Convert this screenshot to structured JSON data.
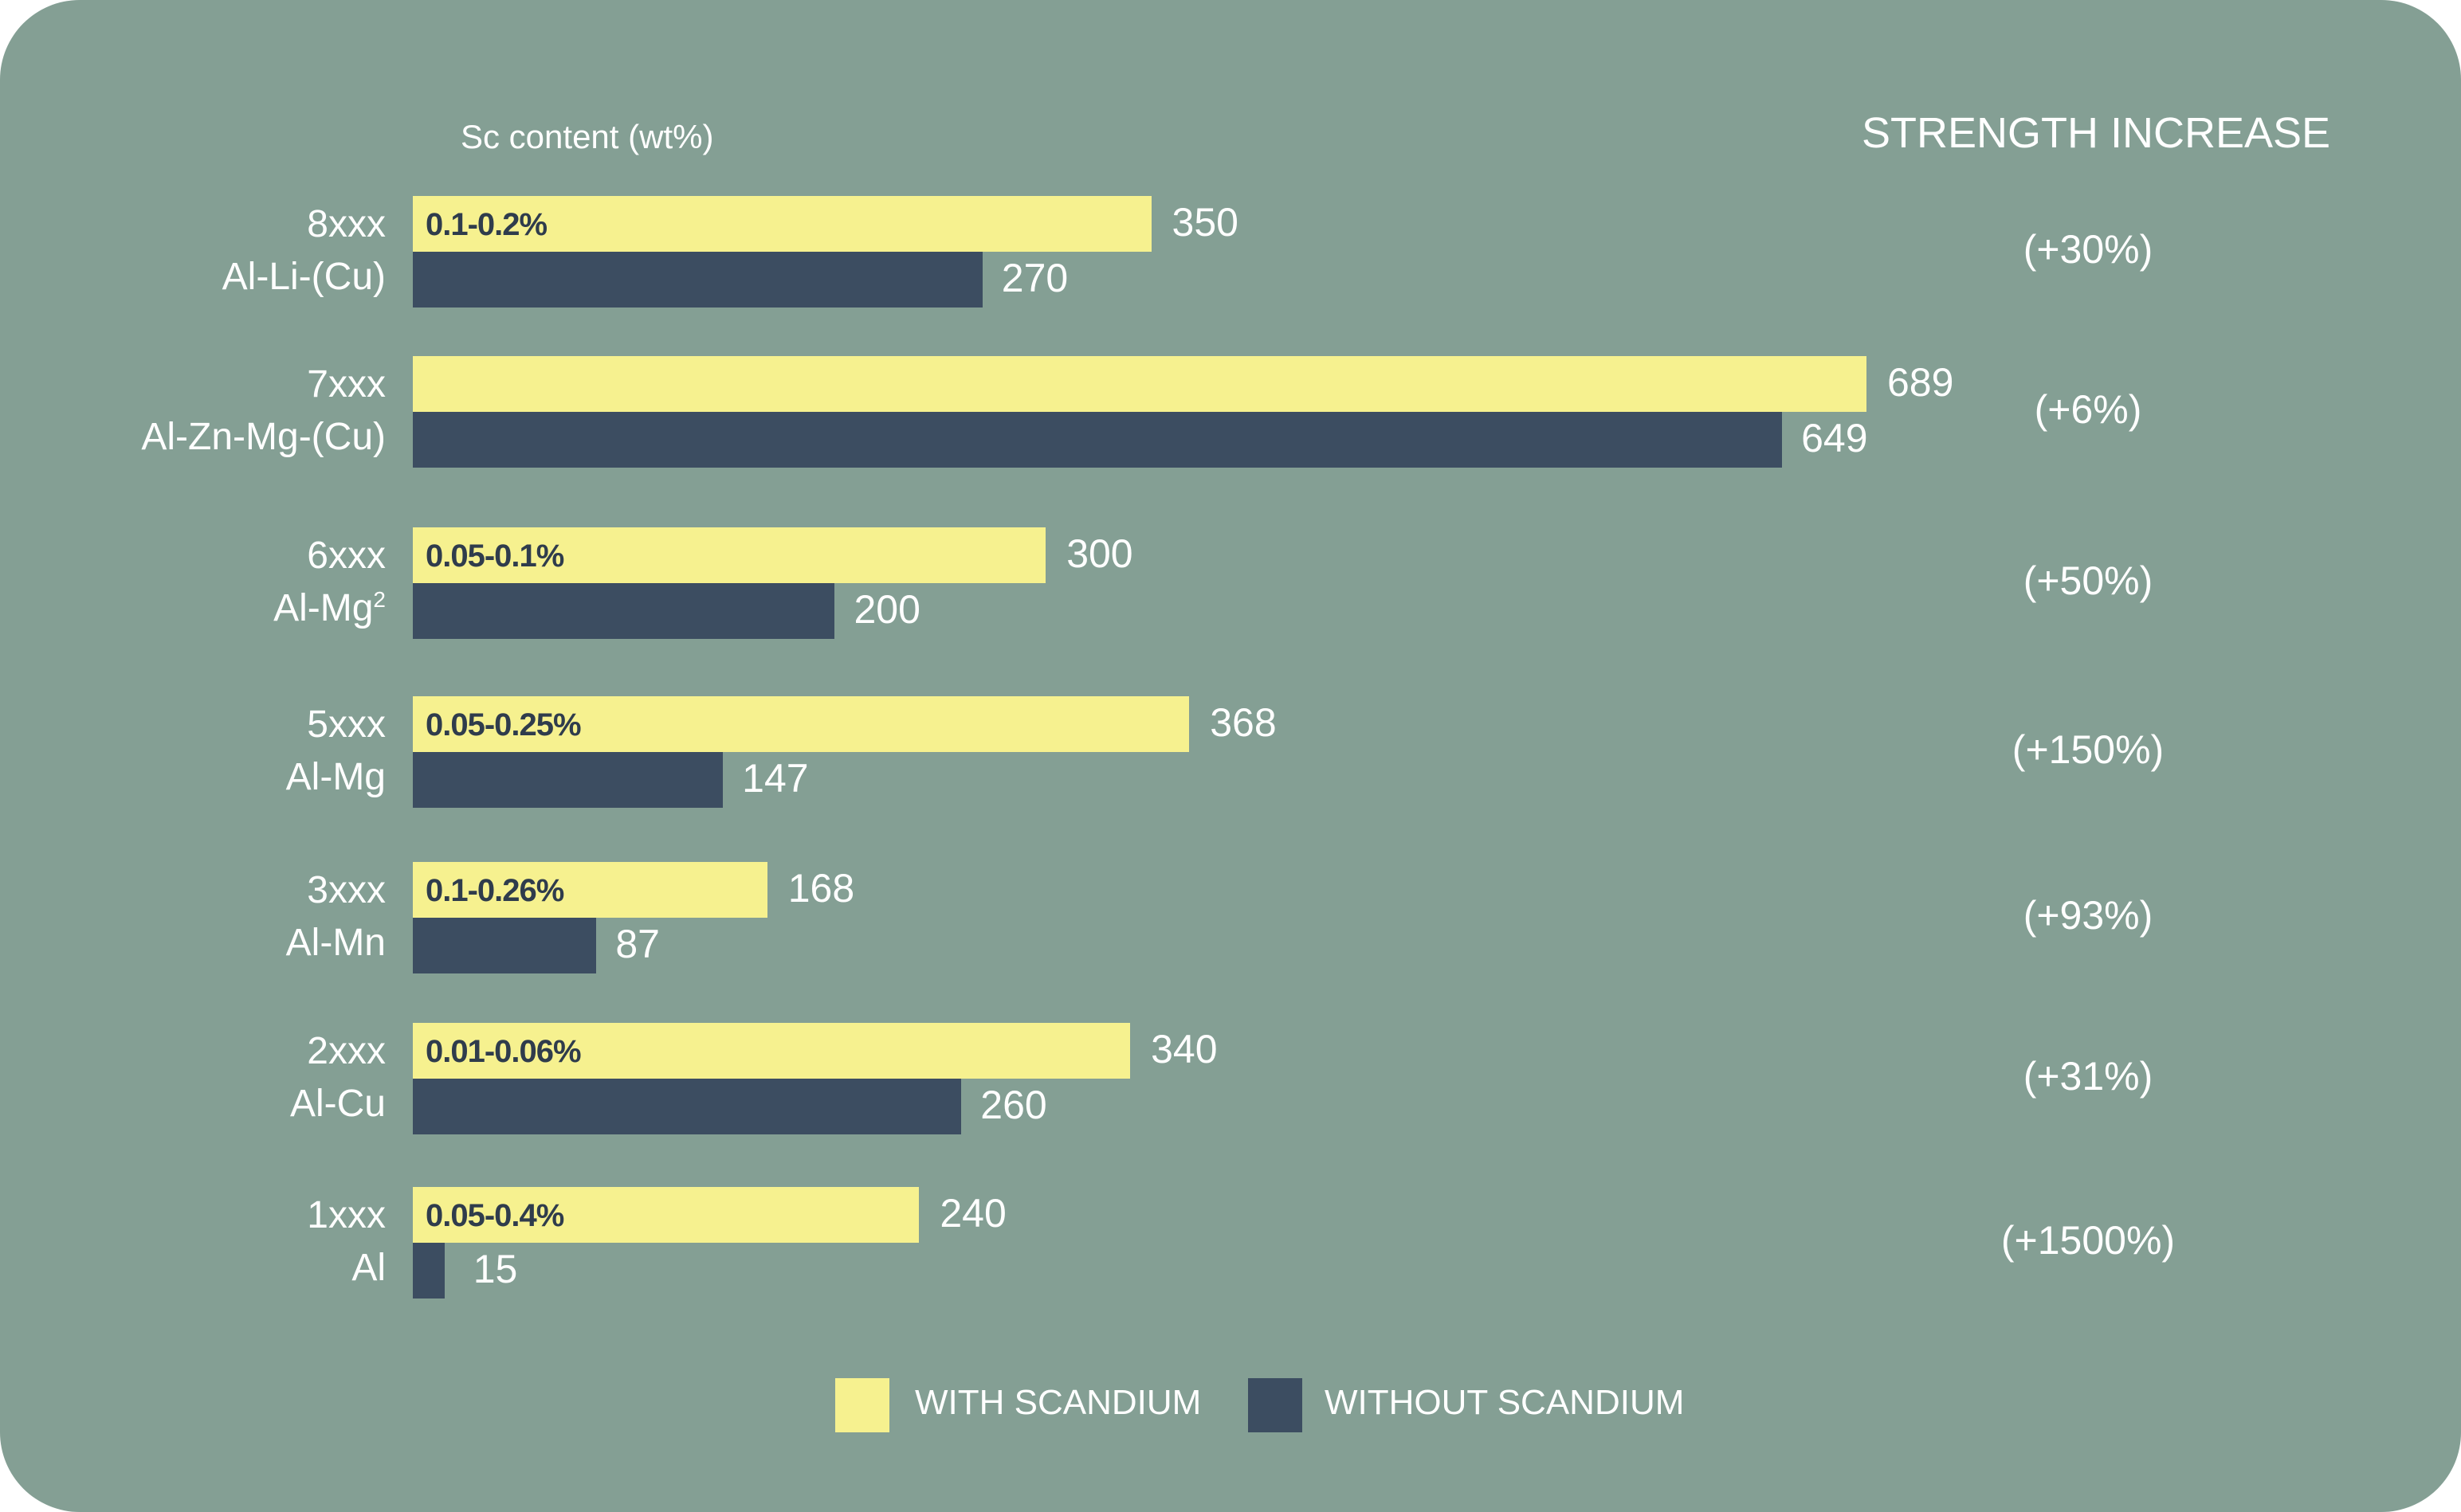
{
  "chart_data": {
    "type": "bar",
    "orientation": "horizontal",
    "header_left": "Sc content (wt%)",
    "header_right": "STRENGTH INCREASE",
    "categories": [
      {
        "code": "8xxx",
        "name": "Al-Li-(Cu)",
        "sc_content": "0.1-0.2%",
        "with": 350,
        "without": 270,
        "increase": "(+30%)"
      },
      {
        "code": "7xxx",
        "name": "Al-Zn-Mg-(Cu)",
        "sc_content": "",
        "with": 689,
        "without": 649,
        "increase": "(+6%)"
      },
      {
        "code": "6xxx",
        "name": "Al-Mg",
        "name_sup": "2",
        "sc_content": "0.05-0.1%",
        "with": 300,
        "without": 200,
        "increase": "(+50%)"
      },
      {
        "code": "5xxx",
        "name": "Al-Mg",
        "sc_content": "0.05-0.25%",
        "with": 368,
        "without": 147,
        "increase": "(+150%)"
      },
      {
        "code": "3xxx",
        "name": "Al-Mn",
        "sc_content": "0.1-0.26%",
        "with": 168,
        "without": 87,
        "increase": "(+93%)"
      },
      {
        "code": "2xxx",
        "name": "Al-Cu",
        "sc_content": "0.01-0.06%",
        "with": 340,
        "without": 260,
        "increase": "(+31%)"
      },
      {
        "code": "1xxx",
        "name": "Al",
        "sc_content": "0.05-0.4%",
        "with": 240,
        "without": 15,
        "increase": "(+1500%)"
      }
    ],
    "series": [
      {
        "name": "WITH SCANDIUM",
        "key": "with",
        "color": "#f6f18f"
      },
      {
        "name": "WITHOUT SCANDIUM",
        "key": "without",
        "color": "#3c4d61"
      }
    ],
    "xlim": [
      0,
      689
    ],
    "legend_position": "bottom",
    "grid": false,
    "colors": {
      "background": "#849f94",
      "with": "#f6f18f",
      "without": "#3c4d61",
      "sc_text": "#2f3c4c"
    }
  }
}
